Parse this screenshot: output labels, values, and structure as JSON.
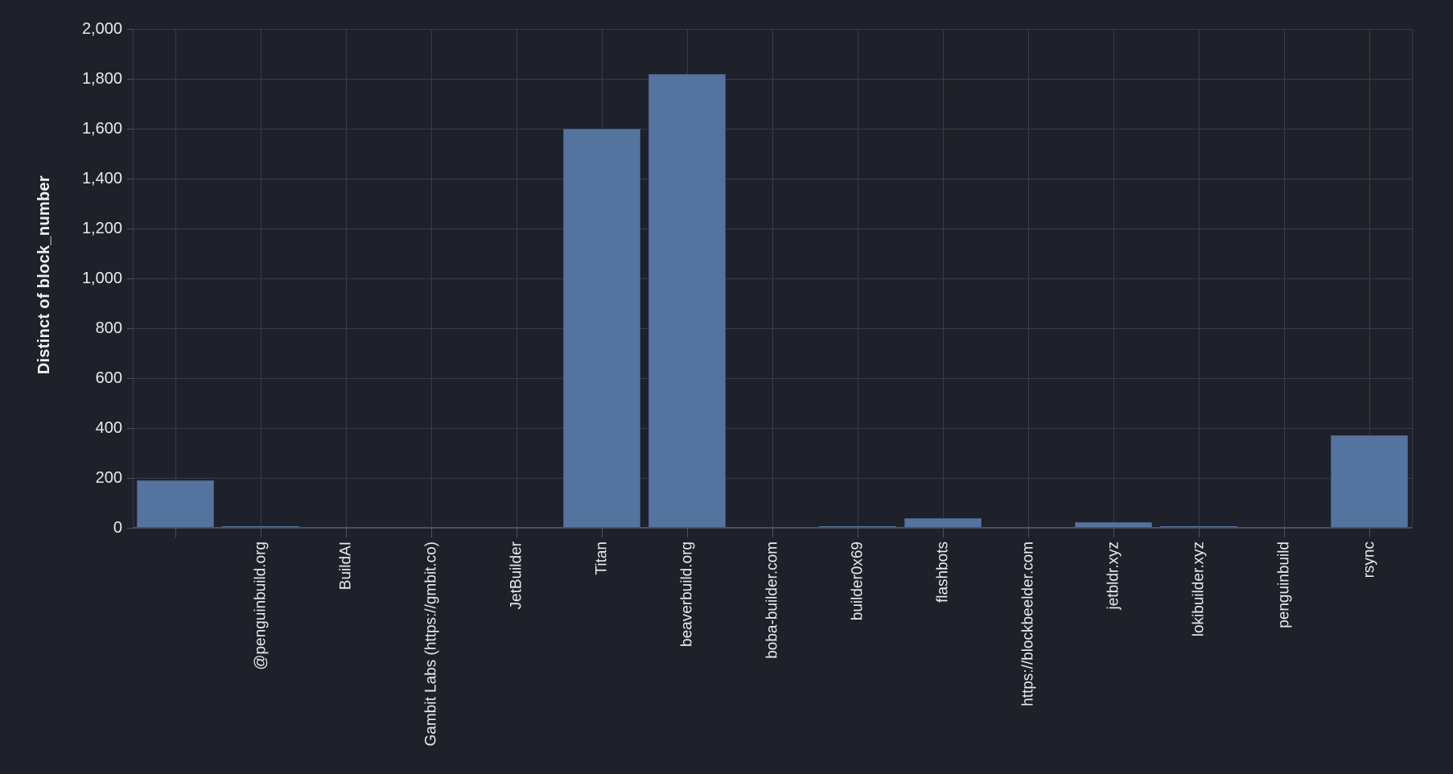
{
  "chart": {
    "colors": {
      "background": "#1f212a",
      "bar_fill": "#54749f",
      "bar_edge": "#455c80",
      "gridline": "#393c48",
      "axis_line": "#4d505e",
      "label_text": "#e9eaec"
    }
  },
  "chart_data": {
    "type": "bar",
    "title": "",
    "xlabel": "",
    "ylabel": "Distinct of block_number",
    "categories": [
      "",
      "@penguinbuild.org",
      "BuildAI",
      "Gambit Labs (https://gmbit.co)",
      "JetBuilder",
      "Titan",
      "beaverbuild.org",
      "boba-builder.com",
      "builder0x69",
      "flashbots",
      "https://blockbeelder.com",
      "jetbldr.xyz",
      "lokibuilder.xyz",
      "penguinbuild",
      "rsync"
    ],
    "values": [
      190,
      8,
      3,
      4,
      3,
      1600,
      1820,
      3,
      8,
      40,
      3,
      22,
      6,
      2,
      370
    ],
    "ylim": [
      0,
      2000
    ],
    "y_tick_values": [
      0,
      200,
      400,
      600,
      800,
      1000,
      1200,
      1400,
      1600,
      1800,
      2000
    ],
    "y_tick_labels": [
      "0",
      "200",
      "400",
      "600",
      "800",
      "1,000",
      "1,200",
      "1,400",
      "1,600",
      "1,800",
      "2,000"
    ],
    "grid": true,
    "legend": false
  }
}
